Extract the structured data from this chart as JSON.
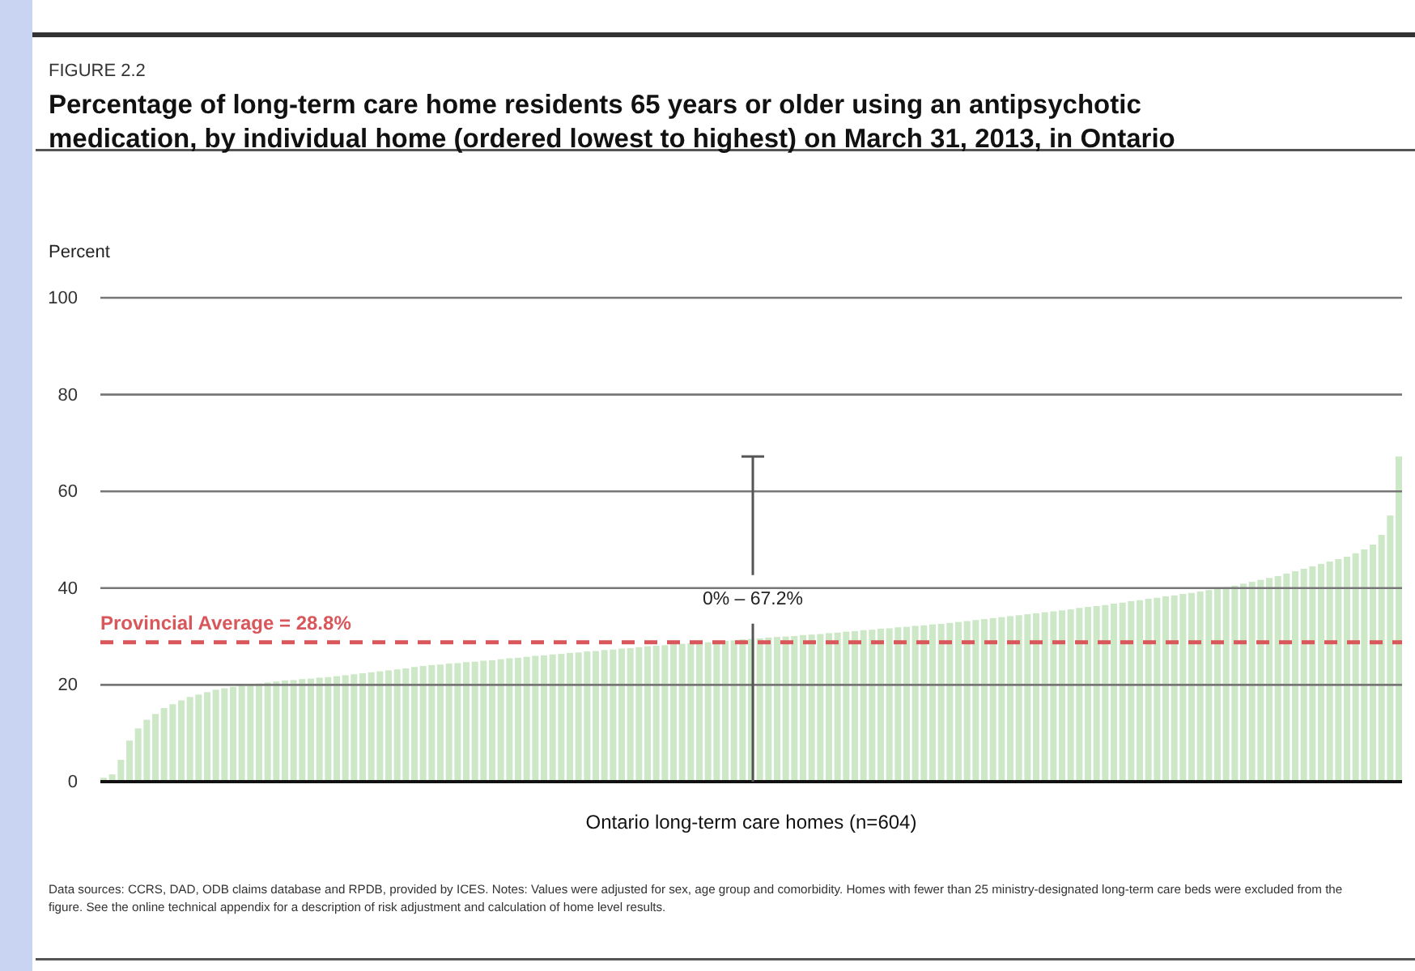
{
  "chart_data": {
    "type": "bar",
    "title": "Percentage of long-term care home residents 65 years or older using an antipsychotic medication, by individual home (ordered lowest to highest) on March 31, 2013, in Ontario",
    "ylabel": "Percent",
    "xlabel": "Ontario long-term care homes (n=604)",
    "annotations": [
      "FIGURE 2.2",
      "0% – 67.2%",
      "Data sources: CCRS, DAD, ODB claims database and RPDB, provided by ICES. Notes: Values were adjusted for sex, age group and comorbidity. Homes with fewer than 25 ministry-designated long-term care beds were excluded from the figure. See the online technical appendix for a description of risk adjustment and calculation of home level results."
    ],
    "categories": [
      null,
      null,
      null,
      null,
      null,
      null,
      null,
      null,
      null,
      null,
      null,
      null,
      null,
      null,
      null,
      null,
      null,
      null,
      null,
      null,
      null,
      null,
      null,
      null,
      null,
      null,
      null,
      null,
      null,
      null,
      null,
      null,
      null,
      null,
      null,
      null,
      null,
      null,
      null,
      null,
      null,
      null,
      null,
      null,
      null,
      null,
      null,
      null,
      null,
      null,
      null,
      null,
      null,
      null,
      null,
      null,
      null,
      null,
      null,
      null,
      null,
      null,
      null,
      null,
      null,
      null,
      null,
      null,
      null,
      null,
      null,
      null,
      null,
      null,
      null,
      null,
      null,
      null,
      null,
      null,
      null,
      null,
      null,
      null,
      null,
      null,
      null,
      null,
      null,
      null,
      null,
      null,
      null,
      null,
      null,
      null,
      null,
      null,
      null,
      null,
      null,
      null,
      null,
      null,
      null,
      null,
      null,
      null,
      null,
      null,
      null,
      null,
      null,
      null,
      null,
      null,
      null,
      null,
      null,
      null,
      null,
      null,
      null,
      null,
      null,
      null,
      null,
      null,
      null,
      null,
      null,
      null,
      null,
      null,
      null,
      null,
      null,
      null,
      null,
      null,
      null,
      null,
      null,
      null,
      null,
      null,
      null,
      null,
      null,
      null,
      null
    ],
    "values": [
      0.8,
      1.5,
      4.5,
      8.5,
      11,
      12.8,
      14,
      15.2,
      16,
      16.8,
      17.5,
      18,
      18.5,
      19,
      19.3,
      19.6,
      19.9,
      20.1,
      20.3,
      20.5,
      20.7,
      20.9,
      21,
      21.2,
      21.3,
      21.5,
      21.6,
      21.8,
      22,
      22.2,
      22.4,
      22.6,
      22.8,
      23,
      23.2,
      23.4,
      23.7,
      23.9,
      24.1,
      24.2,
      24.4,
      24.5,
      24.7,
      24.8,
      25,
      25.1,
      25.3,
      25.5,
      25.6,
      25.8,
      26,
      26.1,
      26.3,
      26.4,
      26.6,
      26.7,
      26.9,
      27,
      27.2,
      27.3,
      27.5,
      27.6,
      27.8,
      28,
      28.1,
      28.2,
      28.4,
      28.5,
      28.6,
      28.7,
      28.8,
      29,
      29.1,
      29.2,
      29.4,
      29.5,
      29.6,
      29.8,
      29.9,
      30,
      30.1,
      30.3,
      30.4,
      30.5,
      30.7,
      30.8,
      31,
      31.1,
      31.3,
      31.4,
      31.6,
      31.7,
      31.9,
      32,
      32.2,
      32.3,
      32.5,
      32.6,
      32.8,
      33,
      33.2,
      33.4,
      33.6,
      33.8,
      34,
      34.2,
      34.4,
      34.6,
      34.8,
      35,
      35.2,
      35.4,
      35.6,
      35.9,
      36.1,
      36.3,
      36.5,
      36.8,
      37,
      37.3,
      37.5,
      37.8,
      38,
      38.3,
      38.5,
      38.8,
      39,
      39.3,
      39.6,
      39.9,
      40.2,
      40.5,
      40.9,
      41.3,
      41.7,
      42.1,
      42.5,
      43,
      43.5,
      44,
      44.5,
      45,
      45.5,
      46,
      46.5,
      47.2,
      48,
      49,
      51,
      55,
      67.2
    ],
    "color": "#cde8c6",
    "ylim": [
      0,
      100
    ],
    "yticks": [
      0,
      20,
      40,
      60,
      80,
      100
    ],
    "grid": "y",
    "ref_lines": [
      {
        "axis": "y",
        "value": 28.8,
        "label": "Provincial Average = 28.8%",
        "color": "#d9575b",
        "line_style": "dashed"
      }
    ]
  }
}
